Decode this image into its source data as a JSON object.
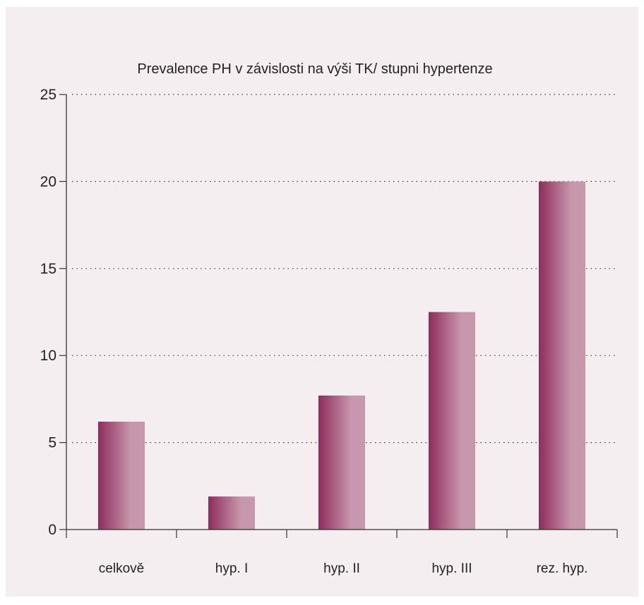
{
  "chart_data": {
    "type": "bar",
    "title": "Prevalence PH v závislosti na výši TK/ stupni hypertenze",
    "xlabel": "",
    "ylabel": "",
    "categories": [
      "celkově",
      "hyp. I",
      "hyp. II",
      "hyp. III",
      "rez. hyp."
    ],
    "values": [
      6.2,
      1.9,
      7.7,
      12.5,
      20.0
    ],
    "ylim": [
      0,
      25
    ],
    "yticks": [
      "0",
      "5",
      "10",
      "15",
      "20",
      "25"
    ],
    "grid": true,
    "grid_style": "dotted",
    "legend": "none",
    "colors": {
      "bar_dark": "#8e2c5b",
      "bar_light": "#c797ad",
      "background": "#f5eef0",
      "axis": "#333333"
    }
  }
}
